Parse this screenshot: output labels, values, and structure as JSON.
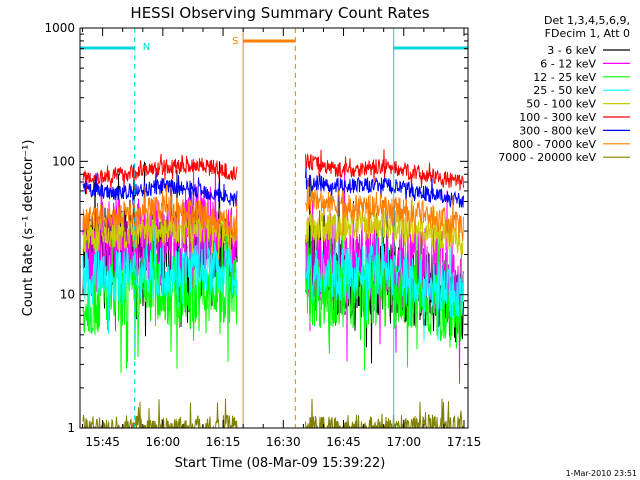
{
  "chart_data": {
    "type": "line",
    "title": "HESSI Observing Summary Count Rates",
    "xlabel": "Start Time (08-Mar-09 15:39:22)",
    "ylabel": "Count Rate (s⁻¹ detector⁻¹)",
    "y_scale": "log",
    "ylim": [
      1,
      1000
    ],
    "xlim": [
      "15:39:22",
      "17:16:00"
    ],
    "x_ticks": [
      "15:45",
      "16:00",
      "16:15",
      "16:30",
      "16:45",
      "17:00",
      "17:15"
    ],
    "y_ticks": [
      "1",
      "10",
      "100",
      "1000"
    ],
    "legend_header": [
      "Det 1,3,4,5,6,9,",
      "FDecim 1, Att 0"
    ],
    "legend_position": "right",
    "footer_date": "1-Mar-2010 23:51",
    "annotations": {
      "night_label": "N",
      "saa_label": "S"
    },
    "colors": {
      "night_bar": "#00d8d8",
      "saa_bar": "#ff7f00"
    },
    "series": [
      {
        "name": "3 - 6 keV",
        "color": "#000000",
        "x": [
          "15:40",
          "15:50",
          "16:00",
          "16:10",
          "16:18",
          "16:36",
          "16:45",
          "16:55",
          "17:05",
          "17:15"
        ],
        "y": [
          20,
          25,
          20,
          25,
          20,
          20,
          13,
          14,
          11,
          8
        ]
      },
      {
        "name": "6 - 12 keV",
        "color": "#ff00ff",
        "x": [
          "15:40",
          "15:50",
          "16:00",
          "16:10",
          "16:18",
          "16:36",
          "16:45",
          "16:55",
          "17:05",
          "17:15"
        ],
        "y": [
          20,
          25,
          25,
          30,
          20,
          17,
          16,
          18,
          15,
          12
        ]
      },
      {
        "name": "12 - 25 keV",
        "color": "#00ff00",
        "x": [
          "15:40",
          "15:50",
          "16:00",
          "16:10",
          "16:18",
          "16:36",
          "16:45",
          "16:55",
          "17:05",
          "17:15"
        ],
        "y": [
          9,
          10,
          11,
          10,
          11,
          11,
          10,
          11,
          9,
          7
        ]
      },
      {
        "name": "25 - 50 keV",
        "color": "#00ffff",
        "x": [
          "15:40",
          "15:50",
          "16:00",
          "16:10",
          "16:18",
          "16:36",
          "16:45",
          "16:55",
          "17:05",
          "17:15"
        ],
        "y": [
          13,
          14,
          15,
          16,
          15,
          15,
          14,
          16,
          12,
          10
        ]
      },
      {
        "name": "50 - 100 keV",
        "color": "#cccc00",
        "x": [
          "15:40",
          "15:50",
          "16:00",
          "16:10",
          "16:18",
          "16:36",
          "16:45",
          "16:55",
          "17:05",
          "17:15"
        ],
        "y": [
          27,
          28,
          30,
          31,
          29,
          32,
          32,
          34,
          30,
          26
        ]
      },
      {
        "name": "100 - 300 keV",
        "color": "#ff0000",
        "x": [
          "15:40",
          "15:50",
          "16:00",
          "16:10",
          "16:18",
          "16:36",
          "16:45",
          "16:55",
          "17:05",
          "17:15"
        ],
        "y": [
          75,
          80,
          90,
          95,
          80,
          100,
          85,
          92,
          80,
          68
        ]
      },
      {
        "name": "300 - 800 keV",
        "color": "#0000ff",
        "x": [
          "15:40",
          "15:50",
          "16:00",
          "16:10",
          "16:18",
          "16:36",
          "16:45",
          "16:55",
          "17:05",
          "17:15"
        ],
        "y": [
          62,
          58,
          65,
          60,
          52,
          70,
          65,
          67,
          58,
          50
        ]
      },
      {
        "name": "800 - 7000 keV",
        "color": "#ff7f00",
        "x": [
          "15:40",
          "15:50",
          "16:00",
          "16:10",
          "16:18",
          "16:36",
          "16:45",
          "16:55",
          "17:05",
          "17:15"
        ],
        "y": [
          35,
          40,
          45,
          40,
          33,
          52,
          45,
          45,
          40,
          33
        ]
      },
      {
        "name": "7000 - 20000 keV",
        "color": "#808000",
        "x": [
          "15:40",
          "15:50",
          "16:00",
          "16:10",
          "16:18",
          "16:36",
          "16:45",
          "16:55",
          "17:05",
          "17:15"
        ],
        "y": [
          1,
          1,
          1,
          1,
          1,
          1,
          1,
          1,
          1,
          1
        ]
      }
    ],
    "night_intervals": [
      [
        "15:39:22",
        "15:53:00"
      ],
      [
        "16:57:30",
        "17:16:00"
      ]
    ],
    "saa_intervals": [
      [
        "16:20:00",
        "16:33:00"
      ]
    ]
  }
}
